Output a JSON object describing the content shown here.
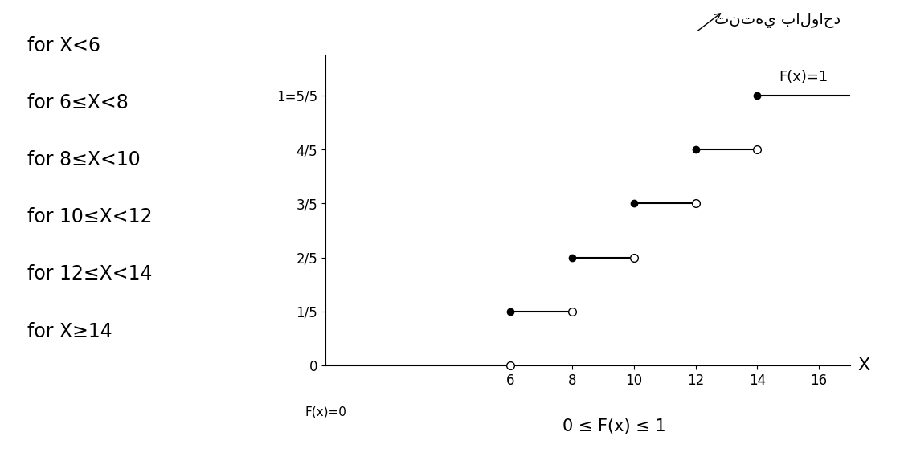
{
  "chart_data": {
    "type": "step",
    "note": "تنتهي بالواحد",
    "conditions": [
      "for X<6",
      "for 6≤X<8",
      "for 8≤X<10",
      "for 10≤X<12",
      "for 12≤X<14",
      "for X≥14"
    ],
    "x_label": "X",
    "steps": [
      {
        "from": 0,
        "to": 6,
        "value": 0
      },
      {
        "from": 6,
        "to": 8,
        "value": 0.2
      },
      {
        "from": 8,
        "to": 10,
        "value": 0.4
      },
      {
        "from": 10,
        "to": 12,
        "value": 0.6
      },
      {
        "from": 12,
        "to": 14,
        "value": 0.8
      },
      {
        "from": 14,
        "to": 17,
        "value": 1
      }
    ],
    "annotations": [
      "F(x)=1",
      "F(x)=0",
      "0 ≤ F(x) ≤ 1"
    ],
    "color": "#000000",
    "xlim": [
      0,
      17
    ],
    "xticks": [
      6,
      8,
      10,
      12,
      14,
      16
    ],
    "ylim": [
      0,
      1.15
    ],
    "yticks": [
      0,
      {
        "value": 0.2,
        "label": "1/5"
      },
      {
        "value": 0.4,
        "label": "2/5"
      },
      {
        "value": 0.6,
        "label": "3/5"
      },
      {
        "value": 0.8,
        "label": "4/5"
      },
      {
        "value": 1,
        "label": "1=5/5"
      }
    ],
    "grid": false
  }
}
